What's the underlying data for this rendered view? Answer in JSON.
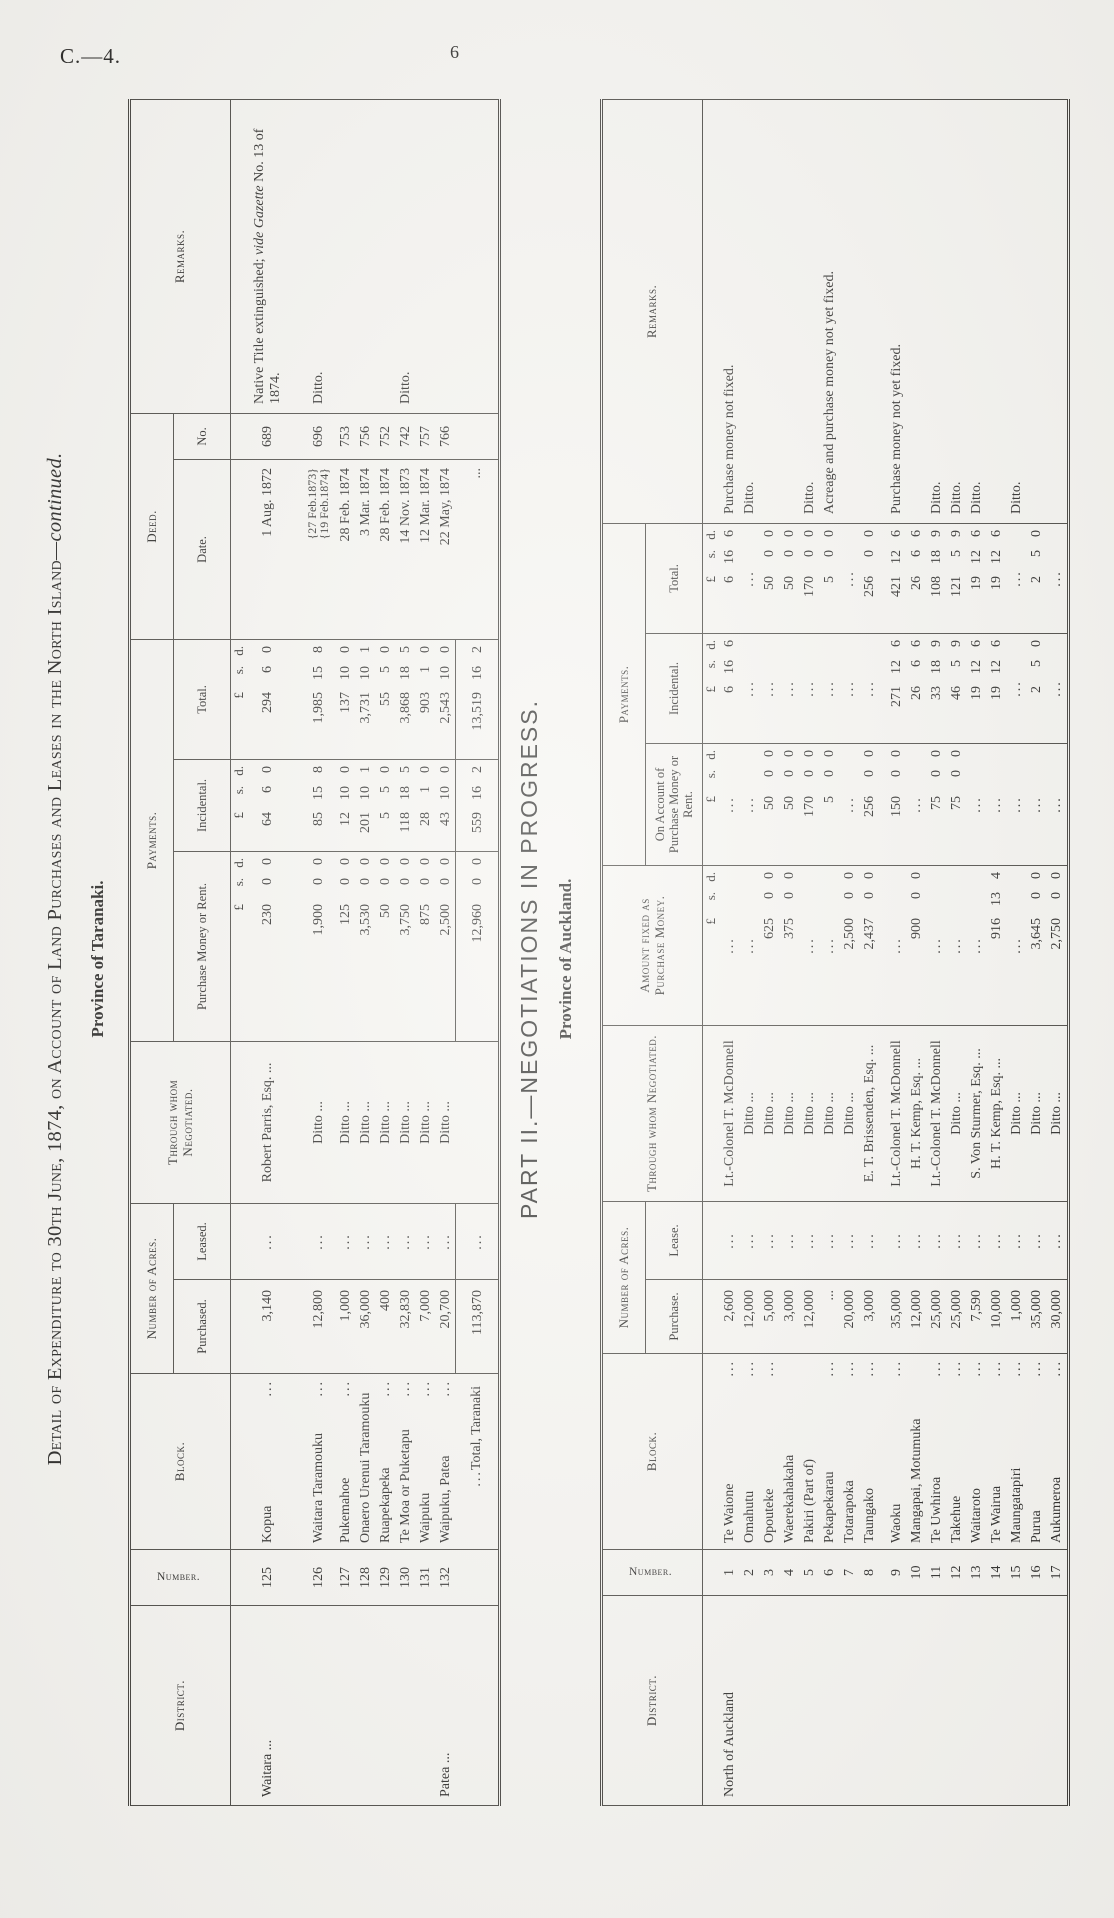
{
  "page": {
    "doc_ref": "C.—4.",
    "page_number": "6"
  },
  "units": {
    "l": "£",
    "s": "s.",
    "d": "d."
  },
  "part1": {
    "title_main": "Detail of Expenditure to 30th June, 1874, on Account of Land Purchases and Leases in the North Island",
    "title_cont": "—continued.",
    "subtitle": "Province of Taranaki.",
    "headers": {
      "district": "District.",
      "number": "Number.",
      "block": "Block.",
      "acres": "Number of Acres.",
      "purchased": "Purchased.",
      "leased": "Leased.",
      "negotiated": "Through whom Negotiated.",
      "payments": "Payments.",
      "purchase_money": "Purchase Money or Rent.",
      "incidental": "Incidental.",
      "total": "Total.",
      "deed": "Deed.",
      "date": "Date.",
      "no": "No.",
      "remarks": "Remarks."
    },
    "rows": [
      {
        "cls": "padb",
        "num": "125",
        "district": "Waitara ...",
        "block": "Kopua",
        "dots": "...",
        "purchased": "3,140",
        "leased": "...",
        "negotiated": "Robert Parris, Esq. ...",
        "pm": "230 0 0",
        "inc": "64 6 0",
        "tot": "294 6 0",
        "date": "1 Aug. 1872",
        "no": "689",
        "remark": {
          "pre": "Native Title extinguished; ",
          "it": "vide Gazette",
          "post": " No. 13 of 1874."
        }
      },
      {
        "cls": "r126",
        "num": "126",
        "district": "",
        "block": "Waitara Taramouku",
        "dots": "...",
        "purchased": "12,800",
        "leased": "...",
        "negotiated": "Ditto ...",
        "pm": "1,900 0 0",
        "inc": "85 15 8",
        "tot": "1,985 15 8",
        "date": "{27 Feb.1873}\n{19 Feb.1874}",
        "no": "696",
        "remark": "Ditto."
      },
      {
        "num": "127",
        "district": "",
        "block": "Pukemahoe",
        "dots": "...",
        "purchased": "1,000",
        "leased": "...",
        "negotiated": "Ditto ...",
        "pm": "125 0 0",
        "inc": "12 10 0",
        "tot": "137 10 0",
        "date": "28 Feb. 1874",
        "no": "753",
        "remark": ""
      },
      {
        "num": "128",
        "district": "",
        "block": "Onaero Urenui Taramouku",
        "dots": "",
        "purchased": "36,000",
        "leased": "...",
        "negotiated": "Ditto ...",
        "pm": "3,530 0 0",
        "inc": "201 10 1",
        "tot": "3,731 10 1",
        "date": "3 Mar. 1874",
        "no": "756",
        "remark": ""
      },
      {
        "num": "129",
        "district": "",
        "block": "Ruapekapeka",
        "dots": "...",
        "purchased": "400",
        "leased": "...",
        "negotiated": "Ditto ...",
        "pm": "50 0 0",
        "inc": "5 5 0",
        "tot": "55 5 0",
        "date": "28 Feb. 1874",
        "no": "752",
        "remark": ""
      },
      {
        "num": "130",
        "district": "",
        "block": "Te Moa or Puketapu",
        "dots": "...",
        "purchased": "32,830",
        "leased": "...",
        "negotiated": "Ditto ...",
        "pm": "3,750 0 0",
        "inc": "118 18 5",
        "tot": "3,868 18 5",
        "date": "14 Nov. 1873",
        "no": "742",
        "remark": "Ditto."
      },
      {
        "num": "131",
        "district": "",
        "block": "Waipuku",
        "dots": "...",
        "purchased": "7,000",
        "leased": "...",
        "negotiated": "Ditto ...",
        "pm": "875 0 0",
        "inc": "28 1 0",
        "tot": "903 1 0",
        "date": "12 Mar. 1874",
        "no": "757",
        "remark": ""
      },
      {
        "num": "132",
        "district": "Patea ...",
        "block": "Waipuku, Patea",
        "dots": "...",
        "purchased": "20,700",
        "leased": "...",
        "negotiated": "Ditto ...",
        "pm": "2,500 0 0",
        "inc": "43 10 0",
        "tot": "2,543 10 0",
        "date": "22 May, 1874",
        "no": "766",
        "remark": ""
      },
      {
        "cls": "totalrow",
        "num": "",
        "district": "",
        "block": "Total, Taranaki",
        "dots": "...",
        "purchased": "113,870",
        "leased": "...",
        "negotiated": "",
        "pm": "12,960 0 0",
        "inc": "559 16 2",
        "tot": "13,519 16 2",
        "date": "...",
        "no": "",
        "remark": ""
      }
    ]
  },
  "part2": {
    "title": "PART II.—NEGOTIATIONS IN PROGRESS.",
    "subtitle": "Province of Auckland.",
    "headers": {
      "district": "District.",
      "number": "Number.",
      "block": "Block.",
      "acres": "Number of Acres.",
      "purchase": "Purchase.",
      "lease": "Lease.",
      "negotiated": "Through whom Negotiated.",
      "amount_fixed": "Amount fixed as Purchase Money.",
      "payments": "Payments.",
      "on_account": "On Account of Purchase Money or Rent.",
      "incidental": "Incidental.",
      "total": "Total.",
      "remarks": "Remarks."
    },
    "rows": [
      {
        "num": "1",
        "district": "North of Auckland",
        "block": "Te Waione",
        "dots": "...",
        "purchase": "2,600",
        "lease": "...",
        "negotiated": "Lt.-Colonel T. McDonnell",
        "amount": "...",
        "onacct": "...",
        "inc": "6 16 6",
        "tot": "6 16 6",
        "remark": "Purchase money not fixed."
      },
      {
        "num": "2",
        "district": "",
        "block": "Omahutu",
        "dots": "...",
        "purchase": "12,000",
        "lease": "...",
        "negotiated": "Ditto ...",
        "amount": "...",
        "onacct": "...",
        "inc": "...",
        "tot": "...",
        "remark": "Ditto."
      },
      {
        "num": "3",
        "district": "",
        "block": "Opouteke",
        "dots": "...",
        "purchase": "5,000",
        "lease": "...",
        "negotiated": "Ditto ...",
        "amount": "625 0 0",
        "onacct": "50 0 0",
        "inc": "...",
        "tot": "50 0 0",
        "remark": ""
      },
      {
        "num": "4",
        "district": "",
        "block": "Waerekahakaha",
        "dots": "",
        "purchase": "3,000",
        "lease": "...",
        "negotiated": "Ditto ...",
        "amount": "375 0 0",
        "onacct": "50 0 0",
        "inc": "...",
        "tot": "50 0 0",
        "remark": ""
      },
      {
        "num": "5",
        "district": "",
        "block": "Pakiri (Part of)",
        "dots": "",
        "purchase": "12,000",
        "lease": "...",
        "negotiated": "Ditto ...",
        "amount": "...",
        "onacct": "170 0 0",
        "inc": "...",
        "tot": "170 0 0",
        "remark": "Ditto."
      },
      {
        "num": "6",
        "district": "",
        "block": "Pekapekarau",
        "dots": "...",
        "purchase": "...",
        "lease": "...",
        "negotiated": "Ditto ...",
        "amount": "...",
        "onacct": "5 0 0",
        "inc": "...",
        "tot": "5 0 0",
        "remark": "Acreage and purchase money not yet fixed."
      },
      {
        "num": "7",
        "district": "",
        "block": "Totarapoka",
        "dots": "...",
        "purchase": "20,000",
        "lease": "...",
        "negotiated": "Ditto ...",
        "amount": "2,500 0 0",
        "onacct": "...",
        "inc": "...",
        "tot": "...",
        "remark": ""
      },
      {
        "num": "8",
        "district": "",
        "block": "Taungako",
        "dots": "...",
        "purchase": "3,000",
        "lease": "...",
        "negotiated": "E. T. Brissenden, Esq. ...",
        "amount": "2,437 0 0",
        "onacct": "256 0 0",
        "inc": "...",
        "tot": "256 0 0",
        "remark": ""
      },
      {
        "cls": "padt",
        "num": "9",
        "district": "",
        "block": "Waoku",
        "dots": "...",
        "purchase": "35,000",
        "lease": "...",
        "negotiated": "Lt.-Colonel T. McDonnell",
        "amount": "...",
        "onacct": "150 0 0",
        "inc": "271 12 6",
        "tot": "421 12 6",
        "remark": "Purchase money not yet fixed."
      },
      {
        "num": "10",
        "district": "",
        "block": "Mangapai, Motumuka",
        "dots": "",
        "purchase": "12,000",
        "lease": "...",
        "negotiated": "H. T. Kemp, Esq. ...",
        "amount": "900 0 0",
        "onacct": "...",
        "inc": "26 6 6",
        "tot": "26 6 6",
        "remark": ""
      },
      {
        "num": "11",
        "district": "",
        "block": "Te Uwhiroa",
        "dots": "...",
        "purchase": "25,000",
        "lease": "...",
        "negotiated": "Lt.-Colonel T. McDonnell",
        "amount": "...",
        "onacct": "75 0 0",
        "inc": "33 18 9",
        "tot": "108 18 9",
        "remark": "Ditto."
      },
      {
        "num": "12",
        "district": "",
        "block": "Takehue",
        "dots": "...",
        "purchase": "25,000",
        "lease": "...",
        "negotiated": "Ditto ...",
        "amount": "...",
        "onacct": "75 0 0",
        "inc": "46 5 9",
        "tot": "121 5 9",
        "remark": "Ditto."
      },
      {
        "num": "13",
        "district": "",
        "block": "Waitaroto",
        "dots": "...",
        "purchase": "7,590",
        "lease": "...",
        "negotiated": "S. Von Sturmer, Esq. ...",
        "amount": "...",
        "onacct": "...",
        "inc": "19 12 6",
        "tot": "19 12 6",
        "remark": "Ditto."
      },
      {
        "num": "14",
        "district": "",
        "block": "Te Wairua",
        "dots": "...",
        "purchase": "10,000",
        "lease": "...",
        "negotiated": "H. T. Kemp, Esq. ...",
        "amount": "916 13 4",
        "onacct": "...",
        "inc": "19 12 6",
        "tot": "19 12 6",
        "remark": ""
      },
      {
        "num": "15",
        "district": "",
        "block": "Maungatapiri",
        "dots": "...",
        "purchase": "1,000",
        "lease": "...",
        "negotiated": "Ditto ...",
        "amount": "...",
        "onacct": "...",
        "inc": "...",
        "tot": "...",
        "remark": "Ditto."
      },
      {
        "num": "16",
        "district": "",
        "block": "Purua",
        "dots": "...",
        "purchase": "35,000",
        "lease": "...",
        "negotiated": "Ditto ...",
        "amount": "3,645 0 0",
        "onacct": "...",
        "inc": "2 5 0",
        "tot": "2 5 0",
        "remark": ""
      },
      {
        "num": "17",
        "district": "",
        "block": "Aukumeroa",
        "dots": "...",
        "purchase": "30,000",
        "lease": "...",
        "negotiated": "Ditto ...",
        "amount": "2,750 0 0",
        "onacct": "...",
        "inc": "...",
        "tot": "...",
        "remark": ""
      }
    ]
  }
}
